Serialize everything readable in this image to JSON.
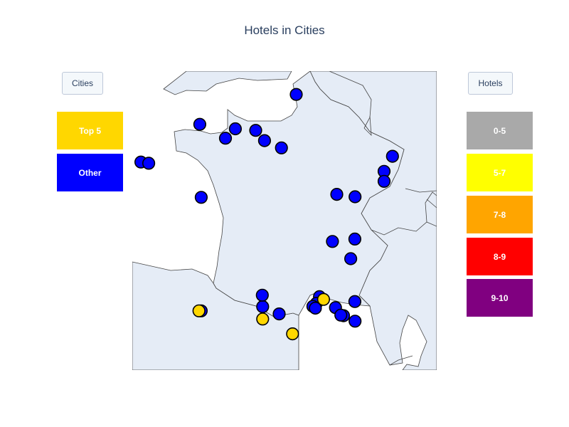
{
  "title": "Hotels in Cities",
  "menus": {
    "cities": {
      "label": "Cities",
      "buttons": [
        {
          "label": "Top 5",
          "color": "#ffd700"
        },
        {
          "label": "Other",
          "color": "#0000ff"
        }
      ]
    },
    "hotels": {
      "label": "Hotels",
      "buttons": [
        {
          "label": "0-5",
          "color": "#a9a9a9"
        },
        {
          "label": "5-7",
          "color": "#ffff00"
        },
        {
          "label": "7-8",
          "color": "#ffa500"
        },
        {
          "label": "8-9",
          "color": "#ff0000"
        },
        {
          "label": "9-10",
          "color": "#800080"
        }
      ]
    }
  },
  "map": {
    "land_color": "#e5ecf6",
    "border_color": "#444444",
    "marker_outline": "#000000",
    "lon_range": [
      -4.9,
      9.9
    ],
    "lat_range": [
      41.5,
      51.4
    ],
    "points": [
      {
        "lon": 3.07,
        "lat": 50.63,
        "group": "Other"
      },
      {
        "lon": 1.1,
        "lat": 49.44,
        "group": "Other"
      },
      {
        "lon": -0.37,
        "lat": 49.18,
        "group": "Other"
      },
      {
        "lon": 0.11,
        "lat": 49.49,
        "group": "Other"
      },
      {
        "lon": -1.62,
        "lat": 49.64,
        "group": "Other"
      },
      {
        "lon": -4.48,
        "lat": 48.39,
        "group": "Other"
      },
      {
        "lon": -4.1,
        "lat": 48.35,
        "group": "Other"
      },
      {
        "lon": 1.53,
        "lat": 49.1,
        "group": "Other"
      },
      {
        "lon": 2.35,
        "lat": 48.86,
        "group": "Other"
      },
      {
        "lon": 7.75,
        "lat": 48.58,
        "group": "Other"
      },
      {
        "lon": 7.34,
        "lat": 48.08,
        "group": "Other"
      },
      {
        "lon": 7.34,
        "lat": 47.75,
        "group": "Other"
      },
      {
        "lon": 5.04,
        "lat": 47.32,
        "group": "Other"
      },
      {
        "lon": 5.93,
        "lat": 47.24,
        "group": "Other"
      },
      {
        "lon": -1.55,
        "lat": 47.22,
        "group": "Other"
      },
      {
        "lon": 4.83,
        "lat": 45.76,
        "group": "Other"
      },
      {
        "lon": 5.92,
        "lat": 45.84,
        "group": "Other"
      },
      {
        "lon": 5.72,
        "lat": 45.19,
        "group": "Other"
      },
      {
        "lon": 1.44,
        "lat": 43.6,
        "group": "Other"
      },
      {
        "lon": 1.42,
        "lat": 43.98,
        "group": "Other"
      },
      {
        "lon": 2.24,
        "lat": 43.36,
        "group": "Other"
      },
      {
        "lon": 4.2,
        "lat": 43.93,
        "group": "Other"
      },
      {
        "lon": 4.05,
        "lat": 43.71,
        "group": "Other"
      },
      {
        "lon": 3.88,
        "lat": 43.61,
        "group": "Other"
      },
      {
        "lon": 4.98,
        "lat": 43.57,
        "group": "Other"
      },
      {
        "lon": 5.37,
        "lat": 43.3,
        "group": "Other"
      },
      {
        "lon": 5.24,
        "lat": 43.32,
        "group": "Other"
      },
      {
        "lon": 5.93,
        "lat": 43.12,
        "group": "Other"
      },
      {
        "lon": 4.0,
        "lat": 43.55,
        "group": "Other"
      },
      {
        "lon": 5.92,
        "lat": 43.77,
        "group": "Other"
      },
      {
        "lon": -1.55,
        "lat": 43.46,
        "group": "Other"
      },
      {
        "lon": -1.66,
        "lat": 43.46,
        "group": "Top 5"
      },
      {
        "lon": 4.4,
        "lat": 43.84,
        "group": "Top 5"
      },
      {
        "lon": 1.44,
        "lat": 43.19,
        "group": "Top 5"
      },
      {
        "lon": 2.89,
        "lat": 42.7,
        "group": "Top 5"
      }
    ]
  }
}
